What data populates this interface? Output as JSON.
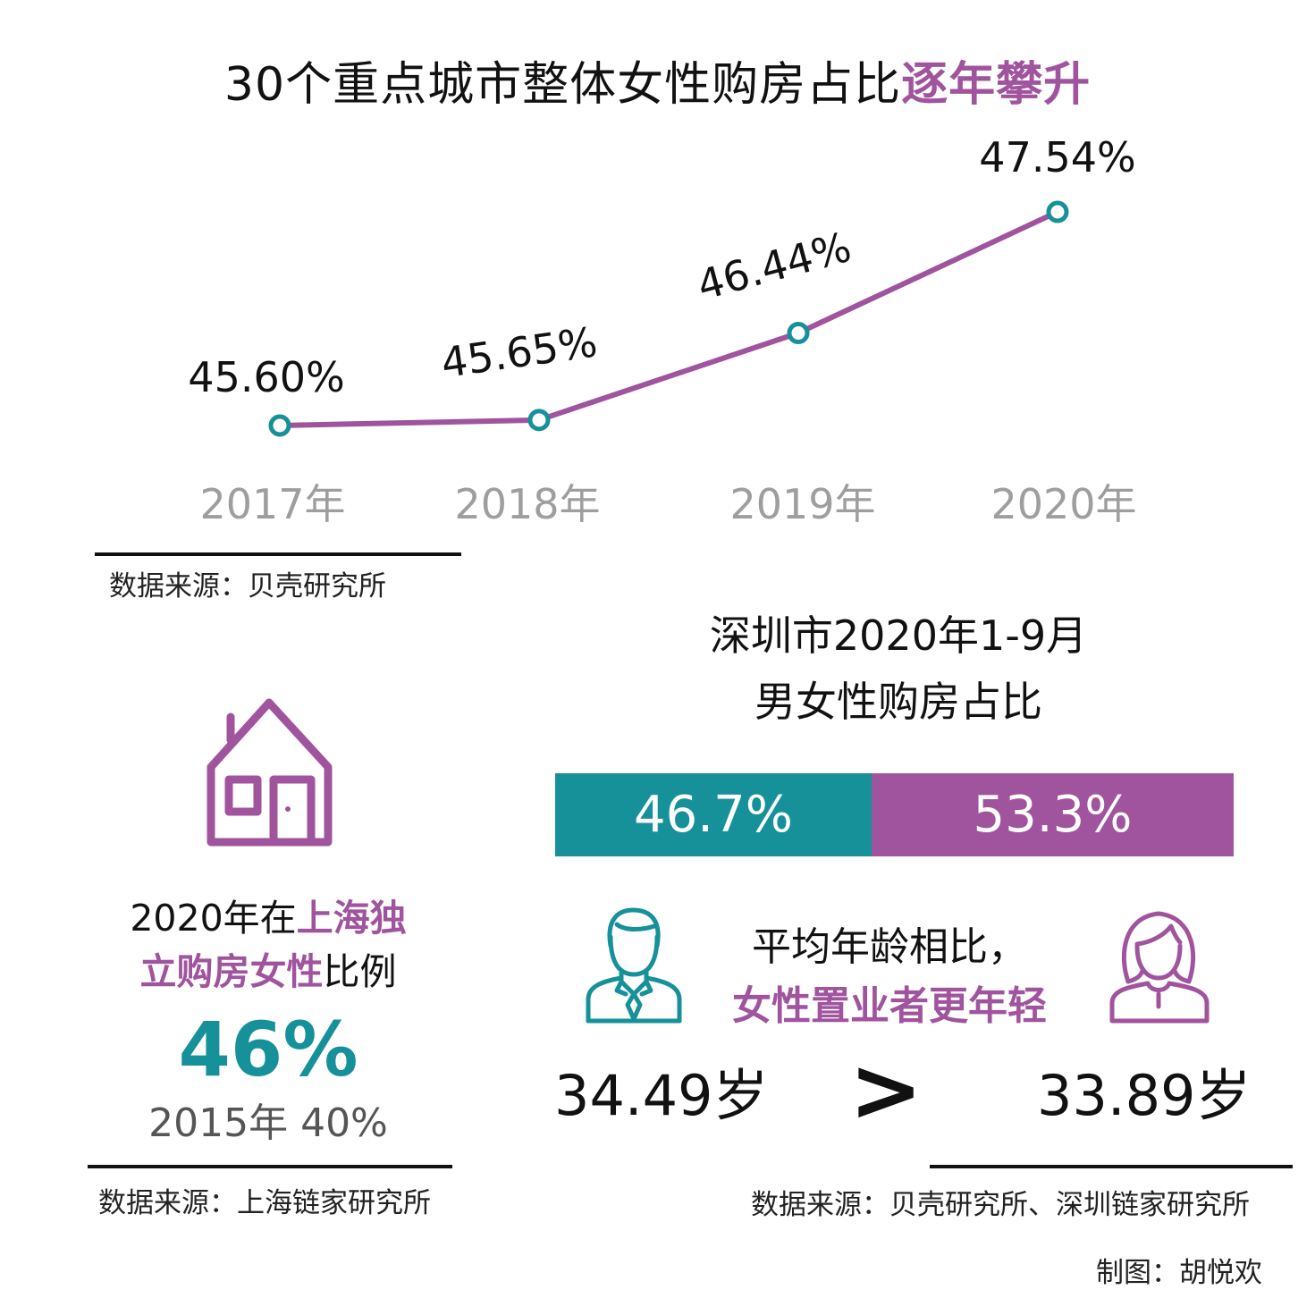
{
  "title": {
    "part1": "30个重点城市整体女性购房占比",
    "part2": "逐年攀升"
  },
  "colors": {
    "purple": "#a0549e",
    "teal": "#16919a",
    "text": "#111111",
    "axis_text": "#9e9e9e"
  },
  "chart_data": {
    "type": "line",
    "x": [
      "2017年",
      "2018年",
      "2019年",
      "2020年"
    ],
    "series": [
      {
        "values": [
          45.6,
          45.65,
          46.44,
          47.54
        ]
      }
    ],
    "data_labels": [
      "45.60%",
      "45.65%",
      "46.44%",
      "47.54%"
    ],
    "grid": false
  },
  "source1": "数据来源：贝壳研究所",
  "shenzhen": {
    "title_line1": "深圳市2020年1-9月",
    "title_line2": "男女性购房占比",
    "male_share": 46.7,
    "female_share": 53.3,
    "male_label": "46.7%",
    "female_label": "53.3%",
    "compare_line1": "平均年龄相比，",
    "compare_line2": "女性置业者更年轻",
    "male_age": "34.49岁",
    "greater_than": ">",
    "female_age": "33.89岁",
    "male_icon": "man-in-suit-icon",
    "female_icon": "woman-icon"
  },
  "shanghai": {
    "icon": "house-icon",
    "line1_prefix": "2020年在",
    "line1_accent": "上海独",
    "line2_accent": "立购房女性",
    "line2_suffix": "比例",
    "value": "46%",
    "previous": "2015年 40%"
  },
  "source2": "数据来源：上海链家研究所",
  "source3": "数据来源：贝壳研究所、深圳链家研究所",
  "credit": "制图：胡悦欢"
}
